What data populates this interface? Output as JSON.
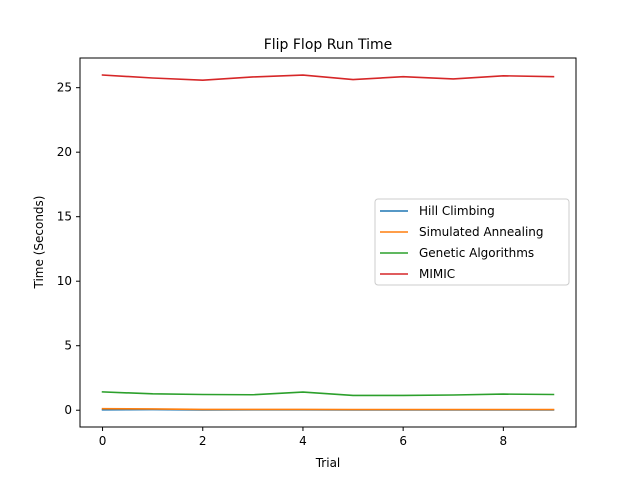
{
  "chart_data": {
    "type": "line",
    "title": "Flip Flop Run Time",
    "xlabel": "Trial",
    "ylabel": "Time (Seconds)",
    "x": [
      0,
      1,
      2,
      3,
      4,
      5,
      6,
      7,
      8,
      9
    ],
    "xlim": [
      -0.45,
      9.45
    ],
    "ylim": [
      -1.3,
      27.3
    ],
    "xticks": [
      0,
      2,
      4,
      6,
      8
    ],
    "yticks": [
      0,
      5,
      10,
      15,
      20,
      25
    ],
    "grid": false,
    "legend_position": "center-right",
    "series": [
      {
        "name": "Hill Climbing",
        "color": "#1f77b4",
        "values": [
          0.03,
          0.05,
          0.02,
          0.03,
          0.03,
          0.02,
          0.02,
          0.02,
          0.02,
          0.02
        ]
      },
      {
        "name": "Simulated Annealing",
        "color": "#ff7f0e",
        "values": [
          0.12,
          0.1,
          0.06,
          0.06,
          0.06,
          0.05,
          0.05,
          0.05,
          0.05,
          0.05
        ]
      },
      {
        "name": "Genetic Algorithms",
        "color": "#2ca02c",
        "values": [
          1.42,
          1.27,
          1.22,
          1.2,
          1.41,
          1.15,
          1.15,
          1.18,
          1.25,
          1.22
        ]
      },
      {
        "name": "MIMIC",
        "color": "#d62728",
        "values": [
          25.98,
          25.75,
          25.58,
          25.83,
          25.98,
          25.63,
          25.85,
          25.68,
          25.92,
          25.85
        ]
      }
    ]
  }
}
